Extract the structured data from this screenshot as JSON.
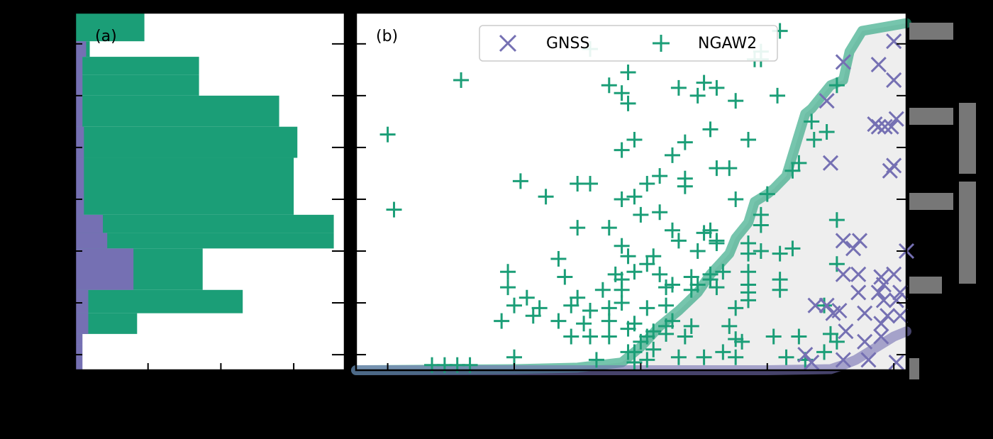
{
  "chart_data": [
    {
      "panel": "(a)",
      "type": "bar",
      "orientation": "horizontal",
      "xlabel": "",
      "ylabel": "",
      "xlim": [
        0,
        3.7
      ],
      "ylim": [
        -0.3,
        6.6
      ],
      "x_ticks": [
        1,
        2,
        3
      ],
      "y_ticks": [
        0,
        1,
        2,
        3,
        4,
        5,
        6
      ],
      "bins_y": [
        [
          -0.3,
          0.2
        ],
        [
          0.2,
          0.4
        ],
        [
          0.4,
          0.8
        ],
        [
          0.8,
          1.25
        ],
        [
          1.25,
          2.05
        ],
        [
          2.05,
          2.35
        ],
        [
          2.35,
          2.7
        ],
        [
          2.7,
          3.8
        ],
        [
          3.8,
          4.4
        ],
        [
          4.4,
          5.0
        ],
        [
          5.0,
          5.4
        ],
        [
          5.4,
          5.75
        ],
        [
          5.75,
          6.05
        ],
        [
          6.05,
          6.6
        ]
      ],
      "series": [
        {
          "name": "NGAW2",
          "color": "#1b9e77",
          "values": [
            0,
            0.0,
            0.85,
            2.3,
            1.75,
            3.55,
            3.55,
            3.0,
            3.05,
            2.8,
            1.7,
            1.7,
            0.2,
            0.95
          ]
        },
        {
          "name": "GNSS",
          "color": "#7570b3",
          "values": [
            0.1,
            0.1,
            0.18,
            0.18,
            0.8,
            0.44,
            0.38,
            0.12,
            0.12,
            0.1,
            0.1,
            0.1,
            0.15,
            0.0
          ]
        }
      ]
    },
    {
      "panel": "(b)",
      "type": "scatter",
      "xlabel": "",
      "ylabel": "",
      "xlim": [
        4.75,
        9.1
      ],
      "ylim": [
        -0.3,
        6.6
      ],
      "x_ticks": [
        5,
        6,
        7,
        8,
        9
      ],
      "y_ticks": [
        0,
        1,
        2,
        3,
        4,
        5,
        6
      ],
      "legend": {
        "position": "top",
        "entries": [
          "GNSS",
          "NGAW2"
        ]
      },
      "series": [
        {
          "name": "GNSS",
          "marker": "x",
          "color": "#7570b3",
          "points": [
            [
              9.0,
              6.05
            ],
            [
              9.0,
              5.3
            ],
            [
              8.88,
              5.6
            ],
            [
              8.6,
              5.65
            ],
            [
              8.47,
              4.9
            ],
            [
              9.02,
              4.55
            ],
            [
              8.85,
              4.45
            ],
            [
              8.88,
              4.4
            ],
            [
              8.93,
              4.4
            ],
            [
              8.98,
              4.4
            ],
            [
              8.5,
              3.7
            ],
            [
              9.0,
              3.65
            ],
            [
              8.97,
              3.55
            ],
            [
              8.6,
              2.2
            ],
            [
              8.73,
              2.2
            ],
            [
              8.68,
              2.05
            ],
            [
              9.1,
              2.0
            ],
            [
              8.6,
              1.55
            ],
            [
              8.72,
              1.55
            ],
            [
              8.9,
              1.5
            ],
            [
              9.0,
              1.55
            ],
            [
              8.92,
              1.35
            ],
            [
              9.05,
              1.2
            ],
            [
              8.72,
              1.2
            ],
            [
              8.88,
              1.2
            ],
            [
              8.92,
              1.05
            ],
            [
              9.02,
              1.05
            ],
            [
              8.38,
              0.95
            ],
            [
              8.47,
              0.95
            ],
            [
              8.57,
              0.85
            ],
            [
              8.52,
              0.8
            ],
            [
              8.77,
              0.8
            ],
            [
              8.95,
              0.75
            ],
            [
              9.05,
              0.75
            ],
            [
              8.9,
              0.6
            ],
            [
              8.62,
              0.45
            ],
            [
              8.77,
              0.25
            ],
            [
              8.9,
              0.35
            ],
            [
              8.3,
              0.0
            ],
            [
              8.35,
              -0.15
            ],
            [
              8.6,
              -0.1
            ],
            [
              8.8,
              -0.1
            ],
            [
              9.02,
              -0.15
            ]
          ]
        },
        {
          "name": "NGAW2",
          "marker": "+",
          "color": "#1b9e77",
          "points": [
            [
              8.1,
              6.25
            ],
            [
              7.95,
              5.85
            ],
            [
              7.95,
              5.7
            ],
            [
              6.6,
              5.9
            ],
            [
              6.9,
              5.45
            ],
            [
              7.9,
              5.7
            ],
            [
              5.58,
              5.3
            ],
            [
              6.85,
              5.05
            ],
            [
              6.75,
              5.2
            ],
            [
              7.3,
              5.15
            ],
            [
              7.5,
              5.25
            ],
            [
              7.6,
              5.15
            ],
            [
              7.45,
              5.0
            ],
            [
              7.75,
              4.9
            ],
            [
              8.08,
              5.0
            ],
            [
              8.55,
              5.2
            ],
            [
              6.9,
              4.85
            ],
            [
              8.35,
              4.5
            ],
            [
              8.47,
              4.3
            ],
            [
              8.37,
              4.15
            ],
            [
              5.0,
              4.25
            ],
            [
              7.55,
              4.35
            ],
            [
              7.35,
              4.1
            ],
            [
              6.95,
              4.15
            ],
            [
              7.85,
              4.15
            ],
            [
              6.85,
              3.95
            ],
            [
              7.25,
              3.85
            ],
            [
              7.6,
              3.6
            ],
            [
              7.7,
              3.6
            ],
            [
              8.25,
              3.7
            ],
            [
              8.2,
              3.55
            ],
            [
              7.15,
              3.45
            ],
            [
              7.35,
              3.4
            ],
            [
              6.05,
              3.35
            ],
            [
              6.5,
              3.3
            ],
            [
              6.6,
              3.3
            ],
            [
              7.05,
              3.3
            ],
            [
              7.35,
              3.25
            ],
            [
              6.85,
              3.0
            ],
            [
              6.95,
              3.05
            ],
            [
              7.75,
              3.0
            ],
            [
              8.0,
              3.1
            ],
            [
              6.25,
              3.05
            ],
            [
              5.05,
              2.8
            ],
            [
              8.55,
              2.6
            ],
            [
              7.0,
              2.7
            ],
            [
              7.15,
              2.75
            ],
            [
              7.95,
              2.7
            ],
            [
              7.95,
              2.5
            ],
            [
              6.5,
              2.45
            ],
            [
              6.75,
              2.45
            ],
            [
              7.25,
              2.4
            ],
            [
              7.5,
              2.35
            ],
            [
              7.55,
              2.4
            ],
            [
              7.3,
              2.2
            ],
            [
              7.6,
              2.2
            ],
            [
              7.85,
              2.15
            ],
            [
              8.2,
              2.05
            ],
            [
              6.85,
              2.1
            ],
            [
              7.95,
              2.0
            ],
            [
              8.1,
              1.95
            ],
            [
              8.55,
              1.75
            ],
            [
              7.45,
              2.0
            ],
            [
              7.6,
              2.15
            ],
            [
              7.85,
              1.95
            ],
            [
              6.35,
              1.85
            ],
            [
              6.9,
              1.9
            ],
            [
              7.1,
              1.9
            ],
            [
              7.05,
              1.75
            ],
            [
              6.8,
              1.55
            ],
            [
              7.15,
              1.55
            ],
            [
              7.4,
              1.5
            ],
            [
              7.55,
              1.55
            ],
            [
              7.65,
              1.6
            ],
            [
              7.85,
              1.6
            ],
            [
              7.4,
              1.25
            ],
            [
              7.2,
              1.3
            ],
            [
              7.25,
              1.35
            ],
            [
              7.45,
              1.35
            ],
            [
              7.85,
              1.35
            ],
            [
              8.1,
              1.45
            ],
            [
              5.95,
              1.6
            ],
            [
              5.95,
              1.3
            ],
            [
              6.7,
              1.25
            ],
            [
              6.4,
              1.5
            ],
            [
              6.85,
              1.25
            ],
            [
              6.85,
              1.45
            ],
            [
              6.95,
              1.6
            ],
            [
              7.55,
              1.45
            ],
            [
              7.6,
              1.3
            ],
            [
              7.85,
              1.2
            ],
            [
              8.1,
              1.25
            ],
            [
              6.1,
              1.1
            ],
            [
              6.5,
              1.1
            ],
            [
              6.85,
              1.0
            ],
            [
              7.85,
              1.05
            ],
            [
              6.0,
              0.95
            ],
            [
              6.45,
              0.95
            ],
            [
              6.6,
              0.85
            ],
            [
              6.75,
              0.9
            ],
            [
              7.05,
              0.9
            ],
            [
              7.2,
              0.95
            ],
            [
              7.75,
              0.9
            ],
            [
              8.45,
              0.95
            ],
            [
              6.55,
              0.6
            ],
            [
              6.75,
              0.65
            ],
            [
              6.95,
              0.6
            ],
            [
              7.25,
              0.65
            ],
            [
              7.4,
              0.55
            ],
            [
              7.7,
              0.55
            ],
            [
              7.35,
              0.35
            ],
            [
              7.1,
              0.45
            ],
            [
              7.2,
              0.4
            ],
            [
              6.75,
              0.35
            ],
            [
              7.05,
              0.35
            ],
            [
              6.15,
              0.75
            ],
            [
              5.9,
              0.65
            ],
            [
              6.2,
              0.9
            ],
            [
              6.35,
              0.65
            ],
            [
              7.75,
              0.3
            ],
            [
              8.25,
              0.35
            ],
            [
              8.5,
              0.4
            ],
            [
              6.45,
              0.35
            ],
            [
              6.6,
              0.35
            ],
            [
              6.9,
              0.5
            ],
            [
              7.2,
              0.55
            ],
            [
              7.8,
              0.25
            ],
            [
              8.05,
              0.35
            ],
            [
              8.55,
              0.25
            ],
            [
              7.1,
              0.1
            ],
            [
              7.65,
              0.05
            ],
            [
              7.75,
              -0.05
            ],
            [
              8.15,
              -0.05
            ],
            [
              8.3,
              -0.1
            ],
            [
              8.45,
              0.05
            ],
            [
              6.9,
              0.05
            ],
            [
              6.95,
              -0.15
            ],
            [
              7.3,
              -0.05
            ],
            [
              7.5,
              -0.05
            ],
            [
              7.0,
              0.25
            ],
            [
              6.95,
              0.05
            ],
            [
              6.0,
              -0.05
            ],
            [
              6.65,
              -0.1
            ],
            [
              7.05,
              -0.1
            ],
            [
              5.35,
              -0.2
            ],
            [
              5.45,
              -0.2
            ],
            [
              5.55,
              -0.2
            ],
            [
              5.65,
              -0.2
            ]
          ]
        }
      ],
      "envelopes": [
        {
          "name": "NGAW2",
          "color": "#1b9e77",
          "x": [
            4.75,
            6.0,
            6.5,
            6.85,
            7.0,
            7.15,
            7.3,
            7.45,
            7.55,
            7.7,
            7.75,
            7.85,
            7.9,
            8.0,
            8.05,
            8.15,
            8.3,
            8.35,
            8.5,
            8.55,
            8.6,
            8.65,
            8.75,
            9.1
          ],
          "y": [
            -0.3,
            -0.28,
            -0.25,
            -0.15,
            0.15,
            0.55,
            0.85,
            1.2,
            1.55,
            1.95,
            2.25,
            2.55,
            2.95,
            3.1,
            3.2,
            3.45,
            4.65,
            4.75,
            5.2,
            5.25,
            5.3,
            5.85,
            6.25,
            6.4
          ]
        },
        {
          "name": "GNSS",
          "color": "#7570b3",
          "x": [
            4.75,
            7.0,
            8.0,
            8.5,
            8.6,
            8.7,
            8.8,
            8.9,
            9.0,
            9.1
          ],
          "y": [
            -0.3,
            -0.3,
            -0.3,
            -0.28,
            -0.2,
            -0.1,
            0.05,
            0.2,
            0.35,
            0.45
          ]
        }
      ]
    }
  ]
}
